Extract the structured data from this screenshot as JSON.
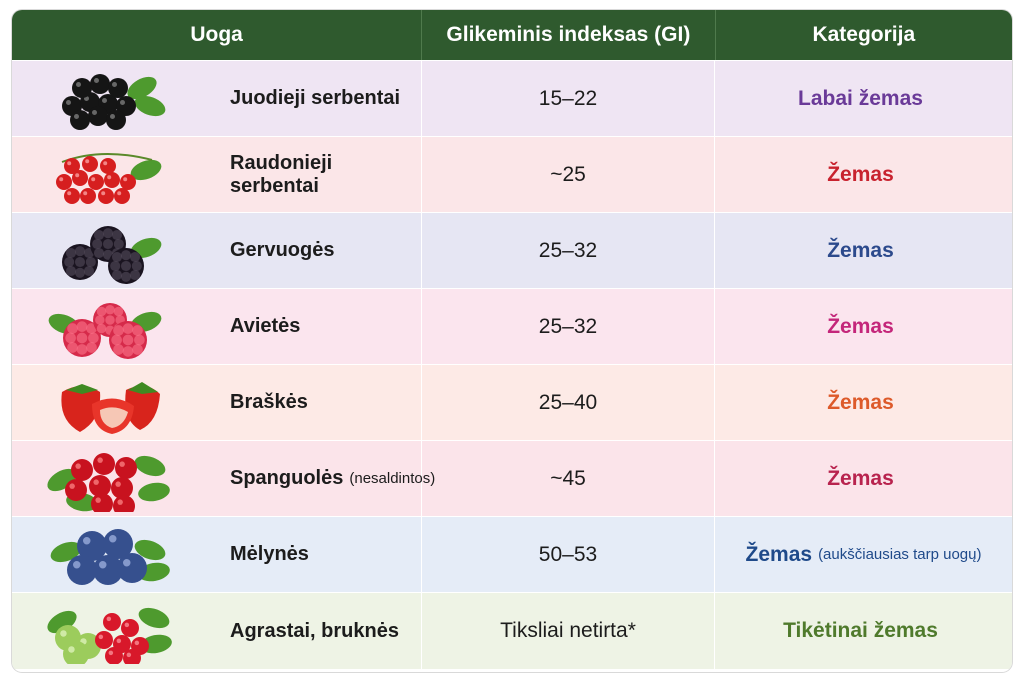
{
  "header": {
    "col1": "Uoga",
    "col2": "Glikeminis indeksas (GI)",
    "col3": "Kategorija"
  },
  "rows": [
    {
      "name": "Juodieji serbentai",
      "note": "",
      "gi": "15–22",
      "category": "Labai žemas",
      "category_note": "",
      "bg": "#efe5f3",
      "category_color": "#6a3a98",
      "icon": "blackcurrant-icon"
    },
    {
      "name": "Raudonieji serbentai",
      "note": "",
      "gi": "~25",
      "category": "Žemas",
      "category_note": "",
      "bg": "#fbe6e8",
      "category_color": "#c8222e",
      "icon": "redcurrant-icon"
    },
    {
      "name": "Gervuogės",
      "note": "",
      "gi": "25–32",
      "category": "Žemas",
      "category_note": "",
      "bg": "#e6e6f3",
      "category_color": "#2c4a8c",
      "icon": "blackberry-icon"
    },
    {
      "name": "Avietės",
      "note": "",
      "gi": "25–32",
      "category": "Žemas",
      "category_note": "",
      "bg": "#fbe5ee",
      "category_color": "#c4267a",
      "icon": "raspberry-icon"
    },
    {
      "name": "Braškės",
      "note": "",
      "gi": "25–40",
      "category": "Žemas",
      "category_note": "",
      "bg": "#fdeae6",
      "category_color": "#dd5a2a",
      "icon": "strawberry-icon"
    },
    {
      "name": "Spanguolės",
      "note": "(nesaldintos)",
      "gi": "~45",
      "category": "Žemas",
      "category_note": "",
      "bg": "#fbe4ea",
      "category_color": "#b8234e",
      "icon": "cranberry-icon"
    },
    {
      "name": "Mėlynės",
      "note": "",
      "gi": "50–53",
      "category": "Žemas",
      "category_note": "(aukščiausias tarp uogų)",
      "bg": "#e5ecf7",
      "category_color": "#1f4a8a",
      "icon": "blueberry-icon"
    },
    {
      "name": "Agrastai, bruknės",
      "note": "",
      "gi": "Tiksliai netirta*",
      "category": "Tikėtinai žemas",
      "category_note": "",
      "bg": "#eef3e5",
      "category_color": "#4f7a2c",
      "icon": "gooseberry-icon"
    }
  ]
}
